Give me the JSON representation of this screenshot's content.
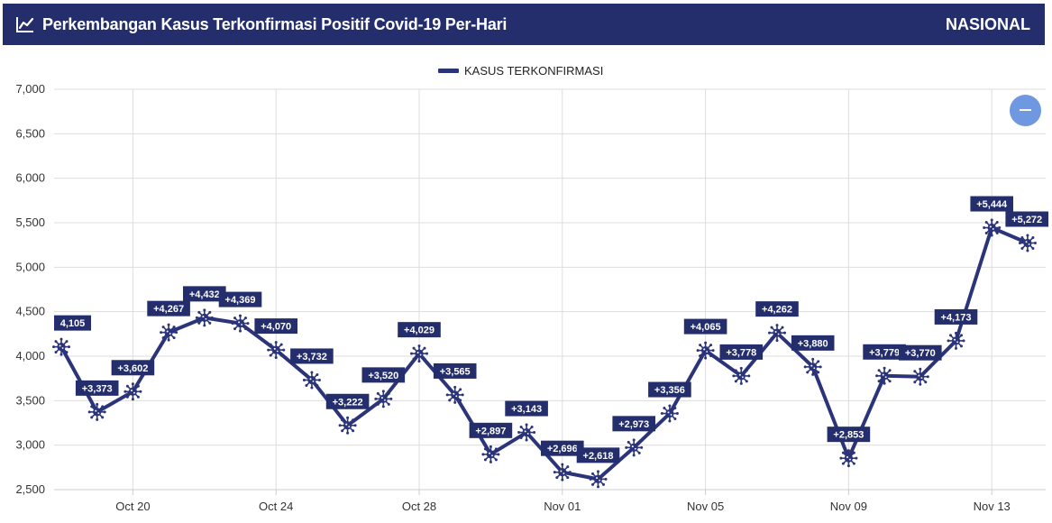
{
  "header": {
    "title": "Perkembangan Kasus Terkonfirmasi Positif Covid-19 Per-Hari",
    "scope": "NASIONAL",
    "icon": "trend-line-icon"
  },
  "colors": {
    "header_bg": "#252e6d",
    "series": "#2b3479",
    "label_bg": "#252e6d",
    "zoom_button": "#6f98e0"
  },
  "zoom_button": {
    "icon": "minus-icon"
  },
  "chart_data": {
    "type": "line",
    "title": "",
    "xlabel": "",
    "ylabel": "",
    "ylim": [
      2500,
      7000
    ],
    "yticks": [
      2500,
      3000,
      3500,
      4000,
      4500,
      5000,
      5500,
      6000,
      6500,
      7000
    ],
    "ytick_labels": [
      "2,500",
      "3,000",
      "3,500",
      "4,000",
      "4,500",
      "5,000",
      "5,500",
      "6,000",
      "6,500",
      "7,000"
    ],
    "x_tick_labels": [
      "Oct 20",
      "Oct 24",
      "Oct 28",
      "Nov 01",
      "Nov 05",
      "Nov 09",
      "Nov 13"
    ],
    "x_tick_index": [
      2,
      6,
      10,
      14,
      18,
      22,
      26
    ],
    "grid": true,
    "legend": {
      "position": "top-center",
      "entries": [
        "KASUS TERKONFIRMASI"
      ]
    },
    "marker": "virus-icon",
    "x": [
      "Oct 18",
      "Oct 19",
      "Oct 20",
      "Oct 21",
      "Oct 22",
      "Oct 23",
      "Oct 24",
      "Oct 25",
      "Oct 26",
      "Oct 27",
      "Oct 28",
      "Oct 29",
      "Oct 30",
      "Oct 31",
      "Nov 01",
      "Nov 02",
      "Nov 03",
      "Nov 04",
      "Nov 05",
      "Nov 06",
      "Nov 07",
      "Nov 08",
      "Nov 09",
      "Nov 10",
      "Nov 11",
      "Nov 12",
      "Nov 13",
      "Nov 14"
    ],
    "series": [
      {
        "name": "KASUS TERKONFIRMASI",
        "values": [
          4105,
          3373,
          3602,
          4267,
          4432,
          4369,
          4070,
          3732,
          3222,
          3520,
          4029,
          3565,
          2897,
          3143,
          2696,
          2618,
          2973,
          3356,
          4065,
          3778,
          4262,
          3880,
          2853,
          3779,
          3770,
          4173,
          5444,
          5272
        ],
        "labels": [
          "4,105",
          "+3,373",
          "+3,602",
          "+4,267",
          "+4,432",
          "+4,369",
          "+4,070",
          "+3,732",
          "+3,222",
          "+3,520",
          "+4,029",
          "+3,565",
          "+2,897",
          "+3,143",
          "+2,696",
          "+2,618",
          "+2,973",
          "+3,356",
          "+4,065",
          "+3,778",
          "+4,262",
          "+3,880",
          "+2,853",
          "+3,779",
          "+3,770",
          "+4,173",
          "+5,444",
          "+5,272"
        ]
      }
    ]
  }
}
